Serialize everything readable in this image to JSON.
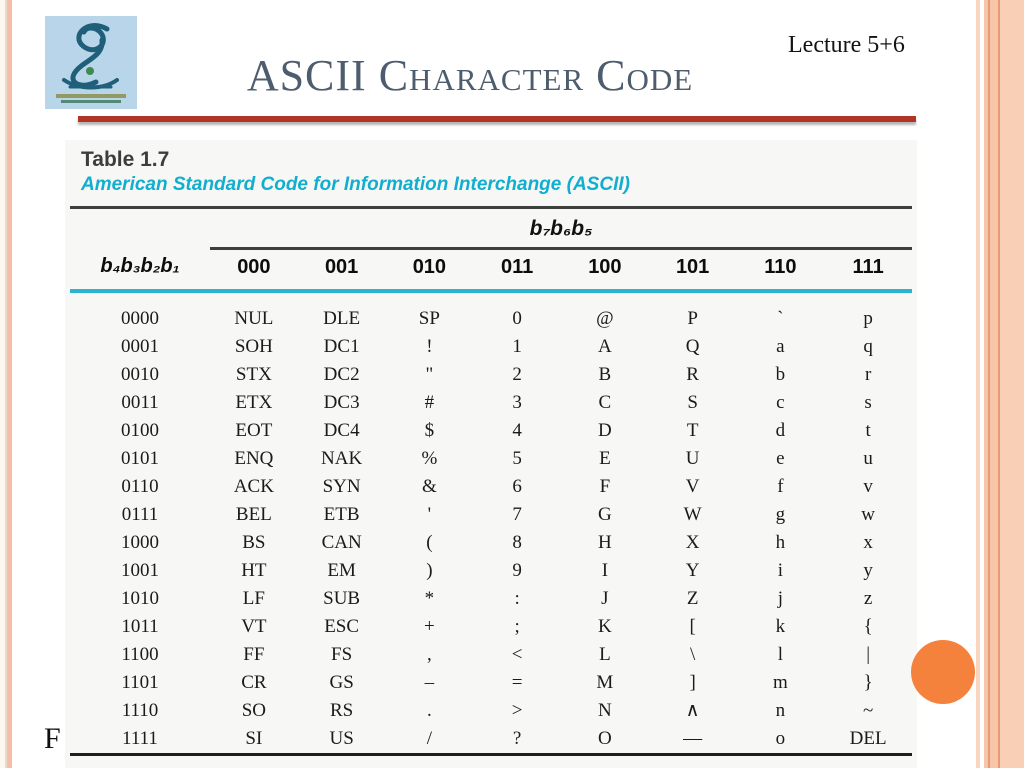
{
  "slide": {
    "title": "ASCII Character Code",
    "lecture_label": "Lecture 5+6",
    "footer_partial_text": "F"
  },
  "figure": {
    "caption": "Table 1.7",
    "subtitle": "American Standard Code for Information Interchange (ASCII)",
    "group_header": "b₇b₆b₅",
    "row_header": "b₄b₃b₂b₁",
    "columns": [
      "000",
      "001",
      "010",
      "011",
      "100",
      "101",
      "110",
      "111"
    ],
    "rows": [
      {
        "bits": "0000",
        "cells": [
          "NUL",
          "DLE",
          "SP",
          "0",
          "@",
          "P",
          "`",
          "p"
        ]
      },
      {
        "bits": "0001",
        "cells": [
          "SOH",
          "DC1",
          "!",
          "1",
          "A",
          "Q",
          "a",
          "q"
        ]
      },
      {
        "bits": "0010",
        "cells": [
          "STX",
          "DC2",
          "\"",
          "2",
          "B",
          "R",
          "b",
          "r"
        ]
      },
      {
        "bits": "0011",
        "cells": [
          "ETX",
          "DC3",
          "#",
          "3",
          "C",
          "S",
          "c",
          "s"
        ]
      },
      {
        "bits": "0100",
        "cells": [
          "EOT",
          "DC4",
          "$",
          "4",
          "D",
          "T",
          "d",
          "t"
        ]
      },
      {
        "bits": "0101",
        "cells": [
          "ENQ",
          "NAK",
          "%",
          "5",
          "E",
          "U",
          "e",
          "u"
        ]
      },
      {
        "bits": "0110",
        "cells": [
          "ACK",
          "SYN",
          "&",
          "6",
          "F",
          "V",
          "f",
          "v"
        ]
      },
      {
        "bits": "0111",
        "cells": [
          "BEL",
          "ETB",
          "'",
          "7",
          "G",
          "W",
          "g",
          "w"
        ]
      },
      {
        "bits": "1000",
        "cells": [
          "BS",
          "CAN",
          "(",
          "8",
          "H",
          "X",
          "h",
          "x"
        ]
      },
      {
        "bits": "1001",
        "cells": [
          "HT",
          "EM",
          ")",
          "9",
          "I",
          "Y",
          "i",
          "y"
        ]
      },
      {
        "bits": "1010",
        "cells": [
          "LF",
          "SUB",
          "*",
          ":",
          "J",
          "Z",
          "j",
          "z"
        ]
      },
      {
        "bits": "1011",
        "cells": [
          "VT",
          "ESC",
          "+",
          ";",
          "K",
          "[",
          "k",
          "{"
        ]
      },
      {
        "bits": "1100",
        "cells": [
          "FF",
          "FS",
          ",",
          "<",
          "L",
          "\\",
          "l",
          "|"
        ]
      },
      {
        "bits": "1101",
        "cells": [
          "CR",
          "GS",
          "–",
          "=",
          "M",
          "]",
          "m",
          "}"
        ]
      },
      {
        "bits": "1110",
        "cells": [
          "SO",
          "RS",
          ".",
          ">",
          "N",
          "∧",
          "n",
          "~"
        ]
      },
      {
        "bits": "1111",
        "cells": [
          "SI",
          "US",
          "/",
          "?",
          "O",
          "—",
          "o",
          "DEL"
        ]
      }
    ]
  },
  "colors": {
    "title": "#4e5d6e",
    "divider_red": "#b23427",
    "accent_cyan": "#12aecf",
    "table_rule_cyan": "#2ab4cf",
    "orange_circle": "#f5823c",
    "stripe_peach": "#f7c6a9",
    "logo_blue": "#b9d5e9"
  }
}
